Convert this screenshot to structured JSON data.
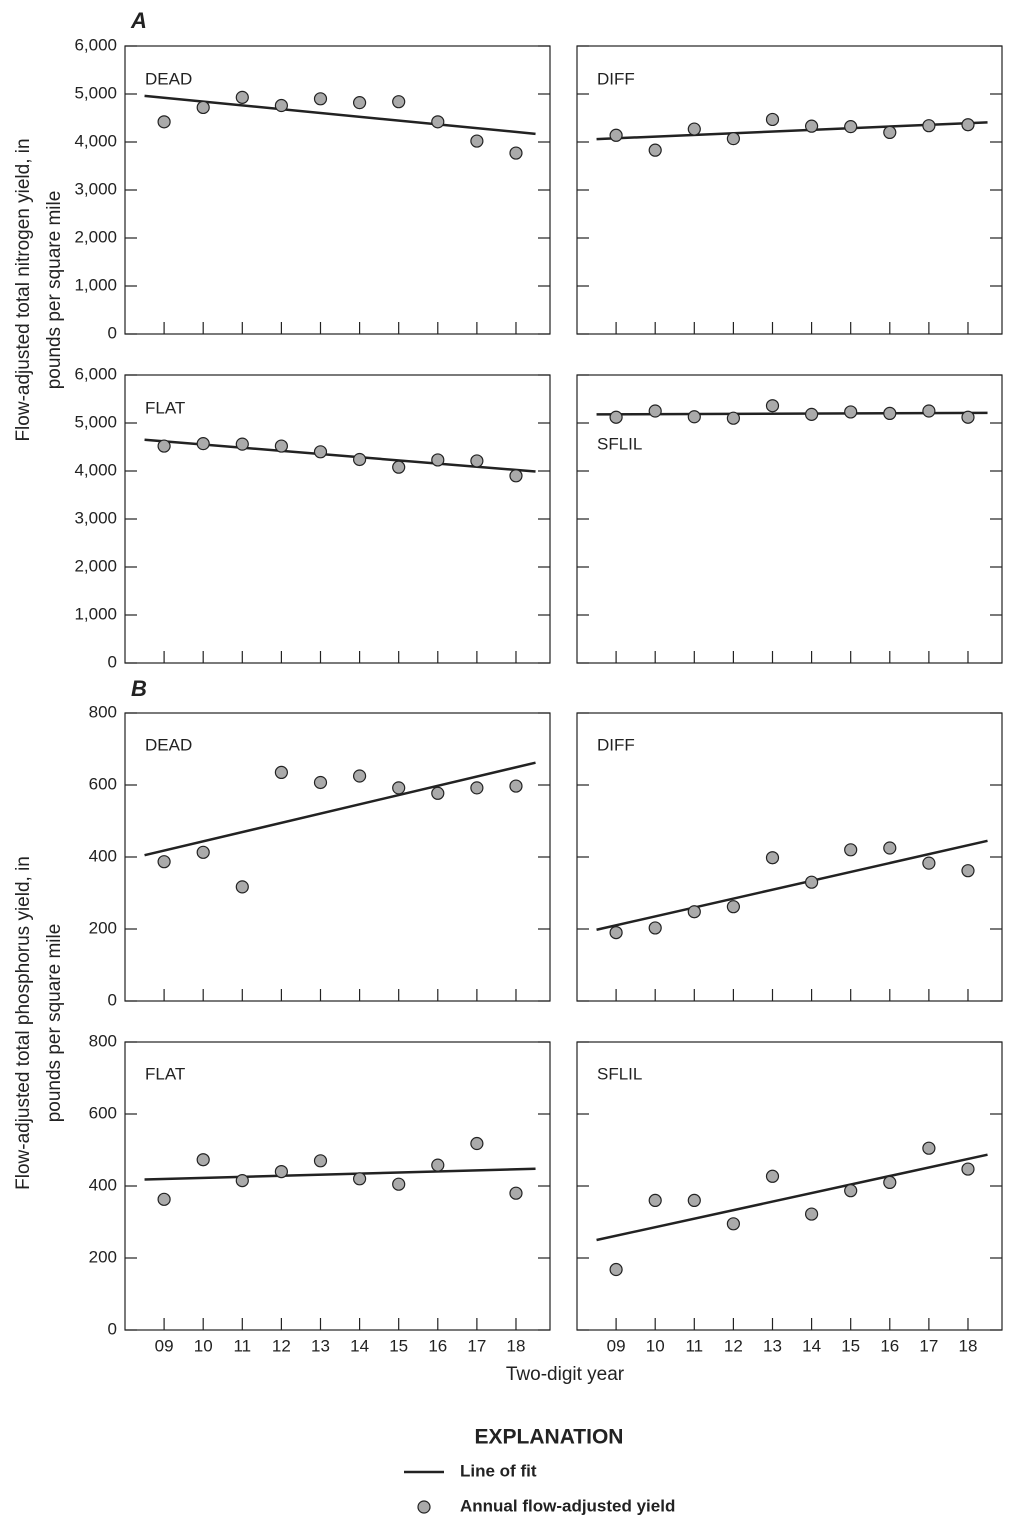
{
  "panel_labels": [
    "A",
    "B"
  ],
  "y_labels": [
    [
      "Flow-adjusted total nitrogen yield, in",
      "pounds per square mile"
    ],
    [
      "Flow-adjusted total phosphorus yield, in",
      "pounds per square mile"
    ]
  ],
  "x_label": "Two-digit year",
  "legend": {
    "title": "EXPLANATION",
    "items": [
      "Line of fit",
      "Annual flow-adjusted yield"
    ]
  },
  "chart_data": [
    {
      "type": "scatter",
      "label": "DEAD",
      "x": [
        9,
        10,
        11,
        12,
        13,
        14,
        15,
        16,
        17,
        18
      ],
      "values": [
        4420,
        4720,
        4930,
        4760,
        4900,
        4820,
        4840,
        4420,
        4020,
        3770
      ],
      "fit": {
        "x": [
          8.5,
          18.5
        ],
        "values": [
          4960,
          4170
        ]
      },
      "xlim": [
        8,
        18.87
      ],
      "xticks": [
        {
          "value": 9,
          "label": "09"
        },
        10,
        11,
        12,
        13,
        14,
        15,
        16,
        17,
        18
      ],
      "ylim": [
        0,
        6000
      ],
      "yticks": [
        0,
        {
          "value": 1000,
          "label": "1,000"
        },
        {
          "value": 2000,
          "label": "2,000"
        },
        {
          "value": 3000,
          "label": "3,000"
        },
        {
          "value": 4000,
          "label": "4,000"
        },
        {
          "value": 5000,
          "label": "5,000"
        },
        {
          "value": 6000,
          "label": "6,000"
        }
      ]
    },
    {
      "type": "scatter",
      "label": "DIFF",
      "x": [
        9,
        10,
        11,
        12,
        13,
        14,
        15,
        16,
        17,
        18
      ],
      "values": [
        4140,
        3830,
        4270,
        4070,
        4470,
        4330,
        4320,
        4200,
        4340,
        4360
      ],
      "fit": {
        "x": [
          8.5,
          18.5
        ],
        "values": [
          4060,
          4410
        ]
      },
      "xlim": [
        8,
        18.87
      ],
      "xticks": [
        {
          "value": 9,
          "label": "09"
        },
        10,
        11,
        12,
        13,
        14,
        15,
        16,
        17,
        18
      ],
      "ylim": [
        0,
        6000
      ],
      "yticks": [
        0,
        {
          "value": 1000,
          "label": "1,000"
        },
        {
          "value": 2000,
          "label": "2,000"
        },
        {
          "value": 3000,
          "label": "3,000"
        },
        {
          "value": 4000,
          "label": "4,000"
        },
        {
          "value": 5000,
          "label": "5,000"
        },
        {
          "value": 6000,
          "label": "6,000"
        }
      ]
    },
    {
      "type": "scatter",
      "label": "FLAT",
      "x": [
        9,
        10,
        11,
        12,
        13,
        14,
        15,
        16,
        17,
        18
      ],
      "values": [
        4520,
        4570,
        4560,
        4520,
        4400,
        4240,
        4080,
        4230,
        4210,
        3900
      ],
      "fit": {
        "x": [
          8.5,
          18.5
        ],
        "values": [
          4650,
          3990
        ]
      },
      "xlim": [
        8,
        18.87
      ],
      "xticks": [
        {
          "value": 9,
          "label": "09"
        },
        10,
        11,
        12,
        13,
        14,
        15,
        16,
        17,
        18
      ],
      "ylim": [
        0,
        6000
      ],
      "yticks": [
        0,
        {
          "value": 1000,
          "label": "1,000"
        },
        {
          "value": 2000,
          "label": "2,000"
        },
        {
          "value": 3000,
          "label": "3,000"
        },
        {
          "value": 4000,
          "label": "4,000"
        },
        {
          "value": 5000,
          "label": "5,000"
        },
        {
          "value": 6000,
          "label": "6,000"
        }
      ]
    },
    {
      "type": "scatter",
      "label": "SFLIL",
      "x": [
        9,
        10,
        11,
        12,
        13,
        14,
        15,
        16,
        17,
        18
      ],
      "values": [
        5120,
        5250,
        5130,
        5100,
        5360,
        5180,
        5230,
        5200,
        5250,
        5120
      ],
      "fit": {
        "x": [
          8.5,
          18.5
        ],
        "values": [
          5180,
          5210
        ]
      },
      "xlim": [
        8,
        18.87
      ],
      "xticks": [
        {
          "value": 9,
          "label": "09"
        },
        10,
        11,
        12,
        13,
        14,
        15,
        16,
        17,
        18
      ],
      "ylim": [
        0,
        6000
      ],
      "yticks": [
        0,
        {
          "value": 1000,
          "label": "1,000"
        },
        {
          "value": 2000,
          "label": "2,000"
        },
        {
          "value": 3000,
          "label": "3,000"
        },
        {
          "value": 4000,
          "label": "4,000"
        },
        {
          "value": 5000,
          "label": "5,000"
        },
        {
          "value": 6000,
          "label": "6,000"
        }
      ]
    },
    {
      "type": "scatter",
      "label": "DEAD",
      "x": [
        9,
        10,
        11,
        12,
        13,
        14,
        15,
        16,
        17,
        18
      ],
      "values": [
        387,
        413,
        317,
        635,
        607,
        625,
        592,
        577,
        592,
        597
      ],
      "fit": {
        "x": [
          8.5,
          18.5
        ],
        "values": [
          405,
          662
        ]
      },
      "xlim": [
        8,
        18.87
      ],
      "xticks": [
        {
          "value": 9,
          "label": "09"
        },
        10,
        11,
        12,
        13,
        14,
        15,
        16,
        17,
        18
      ],
      "ylim": [
        0,
        800
      ],
      "yticks": [
        0,
        200,
        400,
        600,
        800
      ]
    },
    {
      "type": "scatter",
      "label": "DIFF",
      "x": [
        9,
        10,
        11,
        12,
        13,
        14,
        15,
        16,
        17,
        18
      ],
      "values": [
        190,
        203,
        248,
        262,
        398,
        330,
        420,
        425,
        383,
        362
      ],
      "fit": {
        "x": [
          8.5,
          18.5
        ],
        "values": [
          198,
          445
        ]
      },
      "xlim": [
        8,
        18.87
      ],
      "xticks": [
        {
          "value": 9,
          "label": "09"
        },
        10,
        11,
        12,
        13,
        14,
        15,
        16,
        17,
        18
      ],
      "ylim": [
        0,
        800
      ],
      "yticks": [
        0,
        200,
        400,
        600,
        800
      ]
    },
    {
      "type": "scatter",
      "label": "FLAT",
      "x": [
        9,
        10,
        11,
        12,
        13,
        14,
        15,
        16,
        17,
        18
      ],
      "values": [
        363,
        473,
        415,
        440,
        470,
        420,
        405,
        458,
        518,
        380
      ],
      "fit": {
        "x": [
          8.5,
          18.5
        ],
        "values": [
          418,
          448
        ]
      },
      "xlim": [
        8,
        18.87
      ],
      "xticks": [
        {
          "value": 9,
          "label": "09"
        },
        10,
        11,
        12,
        13,
        14,
        15,
        16,
        17,
        18
      ],
      "ylim": [
        0,
        800
      ],
      "yticks": [
        0,
        200,
        400,
        600,
        800
      ]
    },
    {
      "type": "scatter",
      "label": "SFLIL",
      "x": [
        9,
        10,
        11,
        12,
        13,
        14,
        15,
        16,
        17,
        18
      ],
      "values": [
        168,
        360,
        360,
        295,
        427,
        322,
        387,
        410,
        505,
        447
      ],
      "fit": {
        "x": [
          8.5,
          18.5
        ],
        "values": [
          250,
          487
        ]
      },
      "xlim": [
        8,
        18.87
      ],
      "xticks": [
        {
          "value": 9,
          "label": "09"
        },
        10,
        11,
        12,
        13,
        14,
        15,
        16,
        17,
        18
      ],
      "ylim": [
        0,
        800
      ],
      "yticks": [
        0,
        200,
        400,
        600,
        800
      ]
    }
  ]
}
